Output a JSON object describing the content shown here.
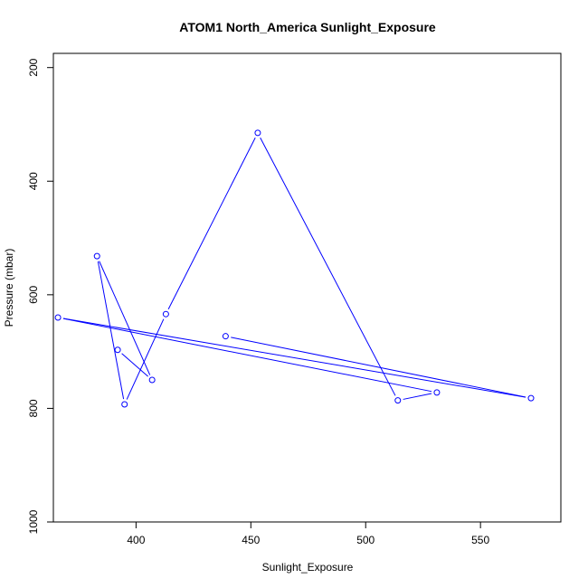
{
  "chart_data": {
    "type": "line",
    "title": "ATOM1 North_America Sunlight_Exposure",
    "xlabel": "Sunlight_Exposure",
    "ylabel": "Pressure (mbar)",
    "xlim": [
      364,
      585
    ],
    "ylim": [
      1000,
      175
    ],
    "y_axis_reversed": true,
    "x_ticks": [
      400,
      450,
      500,
      550
    ],
    "y_ticks": [
      200,
      400,
      600,
      800,
      1000
    ],
    "grid": false,
    "legend": "none",
    "marker": "open-circle",
    "series": [
      {
        "color": "#0000ff",
        "points": [
          {
            "x": 439,
            "y": 673
          },
          {
            "x": 572,
            "y": 782
          },
          {
            "x": 366,
            "y": 640
          },
          {
            "x": 531,
            "y": 772
          },
          {
            "x": 514,
            "y": 786
          },
          {
            "x": 453,
            "y": 315
          },
          {
            "x": 413,
            "y": 634
          },
          {
            "x": 395,
            "y": 793
          },
          {
            "x": 383,
            "y": 532
          },
          {
            "x": 407,
            "y": 750
          },
          {
            "x": 392,
            "y": 697
          }
        ]
      }
    ]
  }
}
